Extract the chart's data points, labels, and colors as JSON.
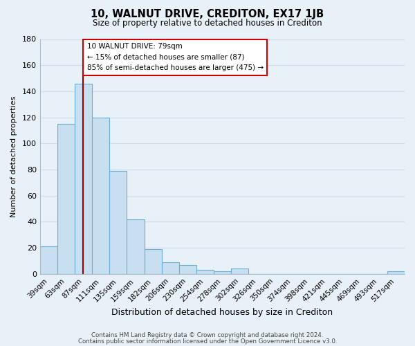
{
  "title": "10, WALNUT DRIVE, CREDITON, EX17 1JB",
  "subtitle": "Size of property relative to detached houses in Crediton",
  "xlabel": "Distribution of detached houses by size in Crediton",
  "ylabel": "Number of detached properties",
  "bar_color": "#c8dff0",
  "bar_edge_color": "#6aaed6",
  "categories": [
    "39sqm",
    "63sqm",
    "87sqm",
    "111sqm",
    "135sqm",
    "159sqm",
    "182sqm",
    "206sqm",
    "230sqm",
    "254sqm",
    "278sqm",
    "302sqm",
    "326sqm",
    "350sqm",
    "374sqm",
    "398sqm",
    "421sqm",
    "445sqm",
    "469sqm",
    "493sqm",
    "517sqm"
  ],
  "values": [
    21,
    115,
    146,
    120,
    79,
    42,
    19,
    9,
    7,
    3,
    2,
    4,
    0,
    0,
    0,
    0,
    0,
    0,
    0,
    0,
    2
  ],
  "ylim": [
    0,
    180
  ],
  "yticks": [
    0,
    20,
    40,
    60,
    80,
    100,
    120,
    140,
    160,
    180
  ],
  "property_line_x": 1.97,
  "property_line_color": "#990000",
  "annotation_title": "10 WALNUT DRIVE: 79sqm",
  "annotation_line1": "← 15% of detached houses are smaller (87)",
  "annotation_line2": "85% of semi-detached houses are larger (475) →",
  "annotation_box_color": "white",
  "annotation_box_edge": "#cc0000",
  "footer_line1": "Contains HM Land Registry data © Crown copyright and database right 2024.",
  "footer_line2": "Contains public sector information licensed under the Open Government Licence v3.0.",
  "background_color": "#e8f0f8",
  "plot_bg_color": "#e8f0f8",
  "grid_color": "#d0dce8",
  "spine_color": "#aabbcc"
}
